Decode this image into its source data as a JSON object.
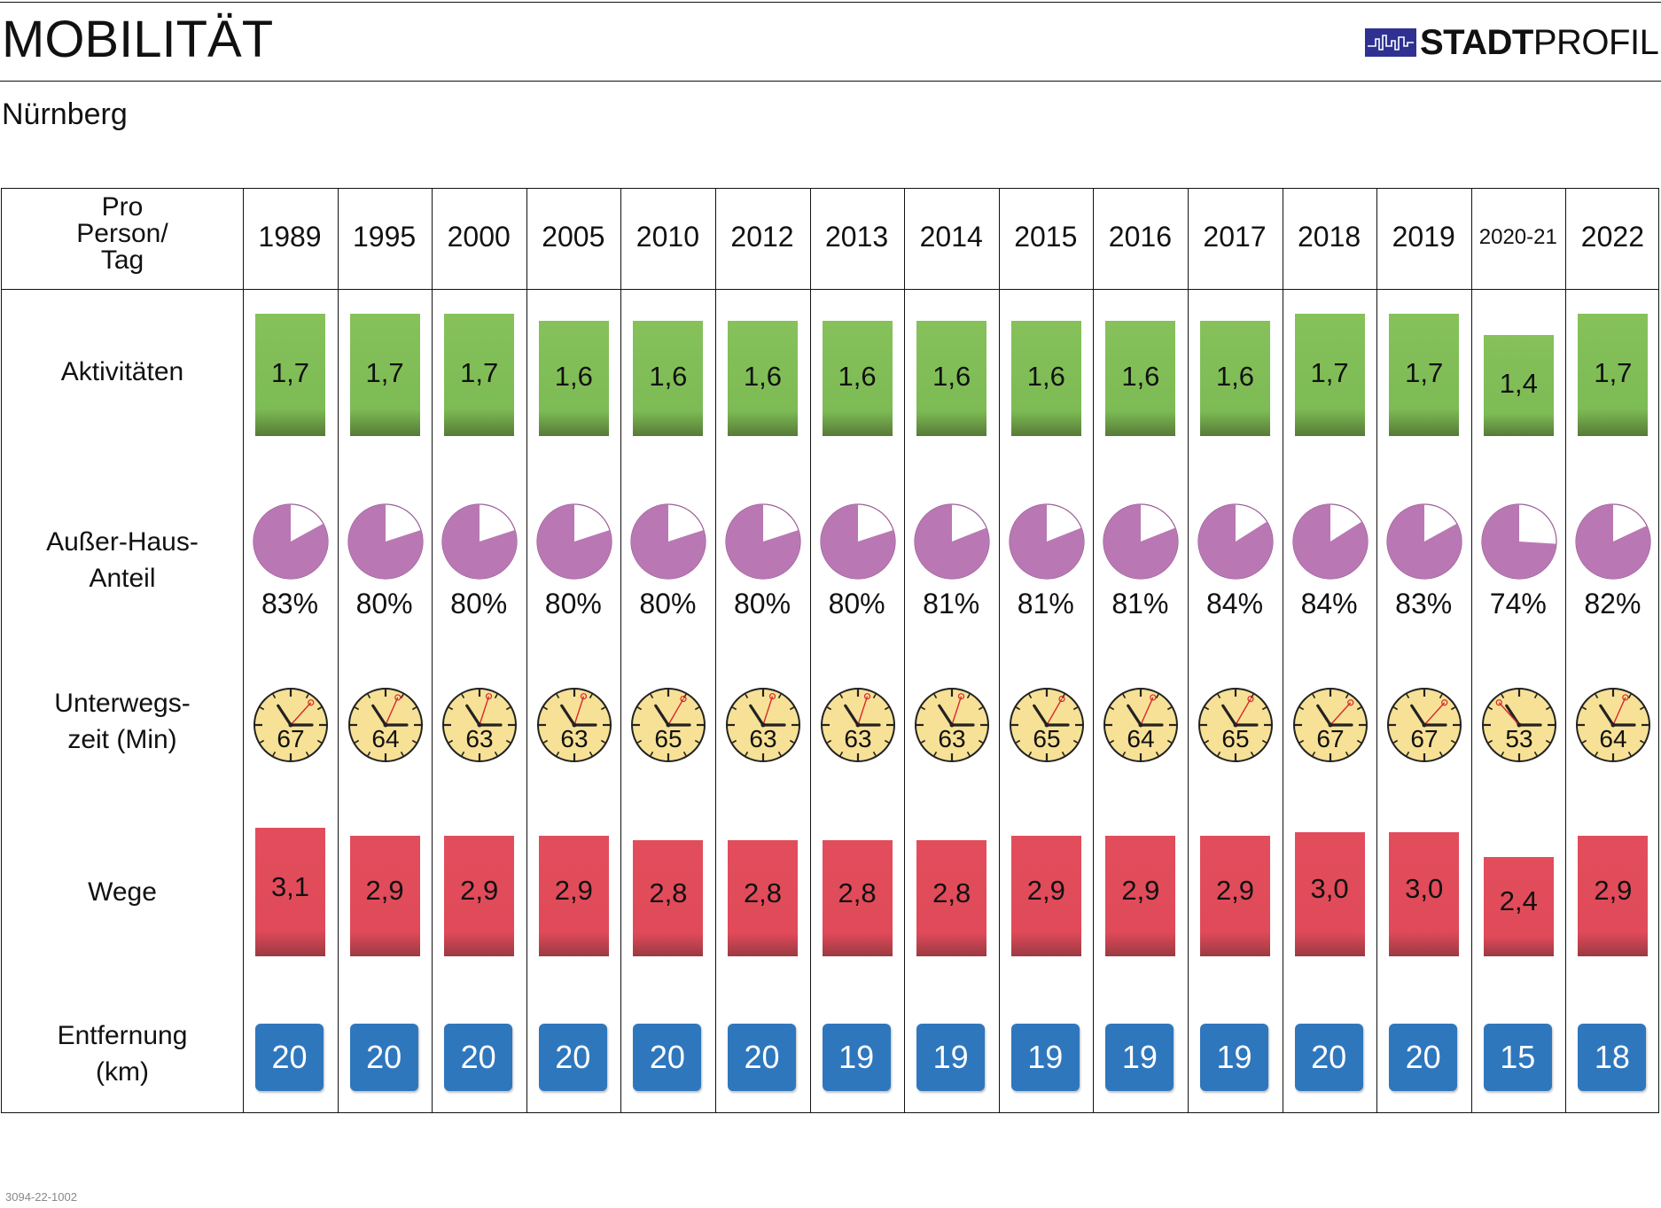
{
  "header": {
    "title": "MOBILITÄT",
    "logo_text_bold": "STADT",
    "logo_text_regular": "PROFIL",
    "city": "Nürnberg",
    "doc_code": "3094-22-1002"
  },
  "table": {
    "corner_lines": [
      "Pro",
      "Person/",
      "Tag"
    ],
    "row_labels": {
      "aktivitaeten": [
        "Aktivitäten"
      ],
      "ausserhaus": [
        "Außer-Haus-",
        "Anteil"
      ],
      "unterwegszeit": [
        "Unterwegs-",
        "zeit (Min)"
      ],
      "wege": [
        "Wege"
      ],
      "entfernung": [
        "Entfernung",
        "(km)"
      ]
    }
  },
  "colors": {
    "aktivitaeten": "#7dbb55",
    "ausserhaus": "#b978b3",
    "clock_face": "#f7e196",
    "wege": "#e04a59",
    "entfernung": "#2f77bd",
    "logo": "#2e3192"
  },
  "chart_data": {
    "type": "table",
    "categories": [
      "1989",
      "1995",
      "2000",
      "2005",
      "2010",
      "2012",
      "2013",
      "2014",
      "2015",
      "2016",
      "2017",
      "2018",
      "2019",
      "2020-21",
      "2022"
    ],
    "series": [
      {
        "key": "aktivitaeten",
        "values": [
          1.7,
          1.7,
          1.7,
          1.6,
          1.6,
          1.6,
          1.6,
          1.6,
          1.6,
          1.6,
          1.6,
          1.7,
          1.7,
          1.4,
          1.7
        ],
        "labels": [
          "1,7",
          "1,7",
          "1,7",
          "1,6",
          "1,6",
          "1,6",
          "1,6",
          "1,6",
          "1,6",
          "1,6",
          "1,6",
          "1,7",
          "1,7",
          "1,4",
          "1,7"
        ]
      },
      {
        "key": "ausserhaus",
        "values": [
          83,
          80,
          80,
          80,
          80,
          80,
          80,
          81,
          81,
          81,
          84,
          84,
          83,
          74,
          82
        ],
        "labels": [
          "83%",
          "80%",
          "80%",
          "80%",
          "80%",
          "80%",
          "80%",
          "81%",
          "81%",
          "81%",
          "84%",
          "84%",
          "83%",
          "74%",
          "82%"
        ]
      },
      {
        "key": "unterwegszeit",
        "values": [
          67,
          64,
          63,
          63,
          65,
          63,
          63,
          63,
          65,
          64,
          65,
          67,
          67,
          53,
          64
        ],
        "labels": [
          "67",
          "64",
          "63",
          "63",
          "65",
          "63",
          "63",
          "63",
          "65",
          "64",
          "65",
          "67",
          "67",
          "53",
          "64"
        ]
      },
      {
        "key": "wege",
        "values": [
          3.1,
          2.9,
          2.9,
          2.9,
          2.8,
          2.8,
          2.8,
          2.8,
          2.9,
          2.9,
          2.9,
          3.0,
          3.0,
          2.4,
          2.9
        ],
        "labels": [
          "3,1",
          "2,9",
          "2,9",
          "2,9",
          "2,8",
          "2,8",
          "2,8",
          "2,8",
          "2,9",
          "2,9",
          "2,9",
          "3,0",
          "3,0",
          "2,4",
          "2,9"
        ]
      },
      {
        "key": "entfernung",
        "values": [
          20,
          20,
          20,
          20,
          20,
          20,
          19,
          19,
          19,
          19,
          19,
          20,
          20,
          15,
          18
        ],
        "labels": [
          "20",
          "20",
          "20",
          "20",
          "20",
          "20",
          "19",
          "19",
          "19",
          "19",
          "19",
          "20",
          "20",
          "15",
          "18"
        ]
      }
    ]
  }
}
